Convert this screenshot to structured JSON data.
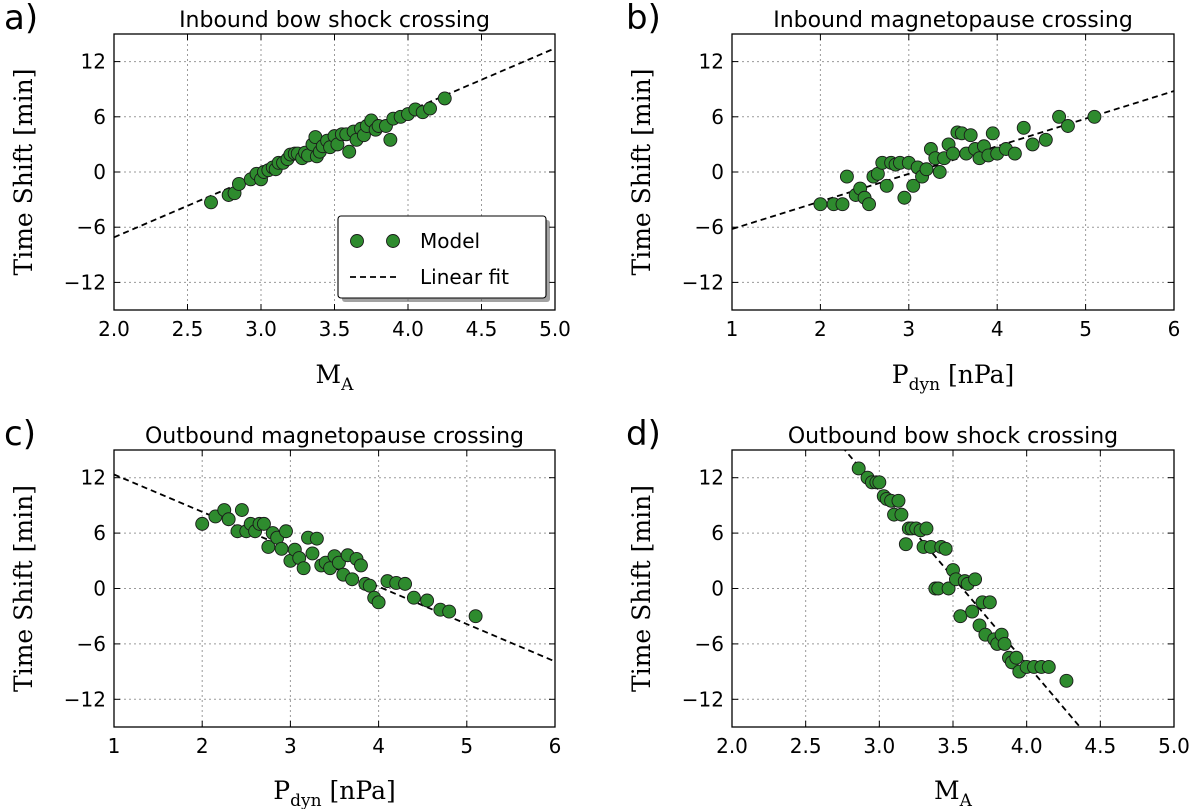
{
  "marker_color": "#2e8b2e",
  "fit_color": "#000000",
  "legend": {
    "model_label": "Model",
    "fit_label": "Linear fit"
  },
  "chart_data": [
    {
      "type": "scatter",
      "panel_label": "a)",
      "title": "Inbound bow shock crossing",
      "ylabel_main": "Time Shift",
      "ylabel_unit": "[min]",
      "xlabel_main": "M",
      "xlabel_sub": "A",
      "xlabel_unit": "",
      "xlim": [
        2.0,
        5.0
      ],
      "ylim": [
        -15,
        15
      ],
      "xticks": [
        "2.0",
        "2.5",
        "3.0",
        "3.5",
        "4.0",
        "4.5",
        "5.0"
      ],
      "yticks": [
        "12",
        "6",
        "0",
        "−6",
        "−12"
      ],
      "fit": {
        "slope": 6.85,
        "intercept": -20.8
      },
      "x": [
        2.66,
        2.78,
        2.82,
        2.85,
        2.93,
        2.97,
        3.0,
        3.02,
        3.05,
        3.08,
        3.1,
        3.12,
        3.15,
        3.18,
        3.2,
        3.23,
        3.25,
        3.28,
        3.3,
        3.32,
        3.35,
        3.37,
        3.38,
        3.4,
        3.42,
        3.45,
        3.47,
        3.5,
        3.52,
        3.55,
        3.58,
        3.6,
        3.63,
        3.65,
        3.68,
        3.7,
        3.72,
        3.75,
        3.78,
        3.8,
        3.85,
        3.88,
        3.9,
        3.95,
        4.0,
        4.05,
        4.1,
        4.15,
        4.25
      ],
      "y": [
        -3.3,
        -2.5,
        -2.3,
        -1.3,
        -0.8,
        -0.2,
        -0.8,
        0.0,
        0.2,
        0.5,
        0.3,
        1.0,
        1.0,
        1.4,
        1.9,
        2.0,
        2.0,
        1.5,
        2.1,
        1.8,
        3.0,
        3.8,
        1.7,
        2.2,
        2.8,
        3.4,
        2.7,
        3.9,
        3.0,
        4.1,
        4.1,
        2.2,
        4.4,
        3.5,
        4.7,
        4.0,
        5.0,
        5.6,
        4.6,
        5.0,
        5.0,
        3.5,
        5.8,
        6.0,
        6.3,
        6.8,
        6.5,
        6.9,
        8.0
      ]
    },
    {
      "type": "scatter",
      "panel_label": "b)",
      "title": "Inbound magnetopause crossing",
      "ylabel_main": "Time Shift",
      "ylabel_unit": "[min]",
      "xlabel_main": "P",
      "xlabel_sub": "dyn",
      "xlabel_unit": "[nPa]",
      "xlim": [
        1,
        6
      ],
      "ylim": [
        -15,
        15
      ],
      "xticks": [
        "1",
        "2",
        "3",
        "4",
        "5",
        "6"
      ],
      "yticks": [
        "12",
        "6",
        "0",
        "−6",
        "−12"
      ],
      "fit": {
        "slope": 3.0,
        "intercept": -9.2
      },
      "x": [
        2.0,
        2.15,
        2.25,
        2.3,
        2.4,
        2.45,
        2.5,
        2.55,
        2.6,
        2.65,
        2.7,
        2.75,
        2.8,
        2.85,
        2.9,
        2.95,
        3.0,
        3.05,
        3.1,
        3.15,
        3.2,
        3.25,
        3.3,
        3.35,
        3.4,
        3.45,
        3.5,
        3.55,
        3.6,
        3.65,
        3.7,
        3.75,
        3.8,
        3.85,
        3.9,
        3.95,
        4.0,
        4.1,
        4.2,
        4.3,
        4.4,
        4.55,
        4.7,
        4.8,
        5.1
      ],
      "y": [
        -3.5,
        -3.5,
        -3.5,
        -0.5,
        -2.5,
        -1.8,
        -2.8,
        -3.5,
        -0.5,
        -0.2,
        1.0,
        -1.5,
        1.0,
        0.8,
        1.0,
        -2.8,
        1.0,
        -1.5,
        0.5,
        -0.5,
        0.3,
        2.5,
        1.5,
        0.0,
        1.5,
        3.0,
        2.0,
        4.3,
        4.2,
        2.0,
        4.0,
        2.5,
        1.5,
        2.8,
        1.8,
        4.2,
        2.0,
        2.5,
        2.0,
        4.8,
        3.0,
        3.5,
        6.0,
        5.0,
        6.0
      ]
    },
    {
      "type": "scatter",
      "panel_label": "c)",
      "title": "Outbound magnetopause crossing",
      "ylabel_main": "Time Shift",
      "ylabel_unit": "[min]",
      "xlabel_main": "P",
      "xlabel_sub": "dyn",
      "xlabel_unit": "[nPa]",
      "xlim": [
        1,
        6
      ],
      "ylim": [
        -15,
        15
      ],
      "xticks": [
        "1",
        "2",
        "3",
        "4",
        "5",
        "6"
      ],
      "yticks": [
        "12",
        "6",
        "0",
        "−6",
        "−12"
      ],
      "fit": {
        "slope": -4.05,
        "intercept": 16.4
      },
      "x": [
        2.0,
        2.15,
        2.25,
        2.3,
        2.4,
        2.45,
        2.5,
        2.55,
        2.6,
        2.65,
        2.7,
        2.75,
        2.8,
        2.85,
        2.9,
        2.95,
        3.0,
        3.05,
        3.1,
        3.15,
        3.2,
        3.25,
        3.3,
        3.35,
        3.4,
        3.45,
        3.5,
        3.55,
        3.6,
        3.65,
        3.7,
        3.75,
        3.8,
        3.85,
        3.9,
        3.95,
        4.0,
        4.1,
        4.2,
        4.3,
        4.4,
        4.55,
        4.7,
        4.8,
        5.1
      ],
      "y": [
        7.0,
        7.8,
        8.5,
        7.5,
        6.2,
        8.5,
        6.2,
        7.0,
        6.2,
        7.0,
        7.0,
        4.5,
        6.0,
        5.5,
        4.3,
        6.2,
        3.0,
        4.2,
        3.3,
        2.2,
        5.5,
        3.8,
        5.4,
        2.5,
        2.8,
        2.2,
        3.5,
        2.8,
        1.5,
        3.6,
        1.0,
        3.2,
        2.5,
        0.5,
        0.3,
        -1.0,
        -1.5,
        0.8,
        0.6,
        0.5,
        -1.0,
        -1.3,
        -2.3,
        -2.5,
        -3.0
      ]
    },
    {
      "type": "scatter",
      "panel_label": "d)",
      "title": "Outbound bow shock crossing",
      "ylabel_main": "Time Shift",
      "ylabel_unit": "[min]",
      "xlabel_main": "M",
      "xlabel_sub": "A",
      "xlabel_unit": "",
      "xlim": [
        2.0,
        5.0
      ],
      "ylim": [
        -15,
        15
      ],
      "xticks": [
        "2.0",
        "2.5",
        "3.0",
        "3.5",
        "4.0",
        "4.5",
        "5.0"
      ],
      "yticks": [
        "12",
        "6",
        "0",
        "−6",
        "−12"
      ],
      "fit": {
        "slope": -18.8,
        "intercept": 67.0
      },
      "x": [
        2.86,
        2.92,
        2.95,
        2.98,
        3.0,
        3.03,
        3.05,
        3.08,
        3.1,
        3.13,
        3.15,
        3.18,
        3.2,
        3.22,
        3.25,
        3.28,
        3.3,
        3.32,
        3.35,
        3.38,
        3.4,
        3.42,
        3.45,
        3.47,
        3.5,
        3.52,
        3.55,
        3.58,
        3.6,
        3.63,
        3.65,
        3.68,
        3.7,
        3.72,
        3.75,
        3.78,
        3.8,
        3.83,
        3.85,
        3.88,
        3.9,
        3.93,
        3.95,
        4.0,
        4.05,
        4.1,
        4.15,
        4.27
      ],
      "y": [
        13.0,
        12.0,
        11.5,
        11.5,
        11.5,
        10.0,
        9.7,
        9.5,
        8.0,
        9.5,
        8.0,
        4.8,
        6.5,
        6.5,
        6.5,
        6.3,
        4.5,
        6.5,
        4.5,
        0.0,
        0.0,
        4.5,
        4.3,
        0.0,
        2.0,
        1.0,
        -3.0,
        0.8,
        0.5,
        -2.5,
        1.0,
        -4.0,
        -1.5,
        -5.0,
        -1.5,
        -5.5,
        -6.0,
        -5.0,
        -6.0,
        -7.5,
        -8.0,
        -7.5,
        -9.0,
        -8.5,
        -8.5,
        -8.5,
        -8.5,
        -10.0
      ]
    }
  ]
}
